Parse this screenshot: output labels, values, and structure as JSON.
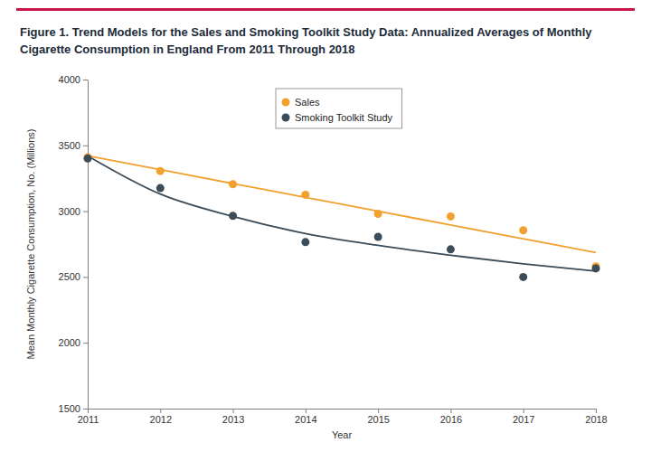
{
  "chart_data": {
    "type": "scatter",
    "title": "Figure 1. Trend Models for the Sales and Smoking Toolkit Study Data: Annualized Averages of Monthly Cigarette Consumption in England From 2011 Through 2018",
    "xlabel": "Year",
    "ylabel": "Mean Monthly Cigarette Consumption, No. (Millions)",
    "x": [
      2011,
      2012,
      2013,
      2014,
      2015,
      2016,
      2017,
      2018
    ],
    "xlim": [
      2011,
      2018
    ],
    "xticks": [
      2011,
      2012,
      2013,
      2014,
      2015,
      2016,
      2017,
      2018
    ],
    "ylim": [
      1500,
      4000
    ],
    "yticks": [
      1500,
      2000,
      2500,
      3000,
      3500,
      4000
    ],
    "grid": false,
    "legend": "top",
    "marker": "circle",
    "line_style": "solid",
    "series": [
      {
        "name": "Sales",
        "color": "#f2a02e",
        "values": [
          3410,
          3305,
          3205,
          3125,
          2980,
          2960,
          2855,
          2580
        ],
        "trend": [
          3420,
          3315,
          3210,
          3105,
          3000,
          2895,
          2790,
          2685
        ]
      },
      {
        "name": "Smoking Toolkit Study",
        "color": "#3c4d59",
        "values": [
          3400,
          3175,
          2965,
          2765,
          2805,
          2710,
          2500,
          2565
        ],
        "trend": [
          3420,
          3130,
          2960,
          2830,
          2740,
          2665,
          2600,
          2545
        ]
      }
    ]
  }
}
